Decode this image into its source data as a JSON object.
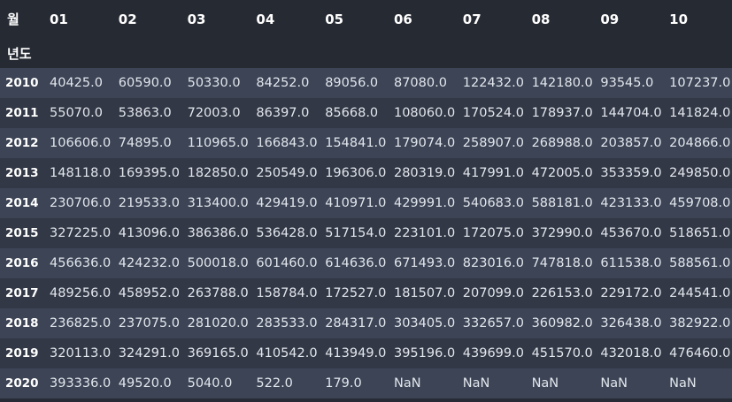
{
  "table": {
    "columns_name": "월",
    "index_name": "년도",
    "columns": [
      "01",
      "02",
      "03",
      "04",
      "05",
      "06",
      "07",
      "08",
      "09",
      "10"
    ],
    "rows": [
      {
        "index": "2010",
        "values": [
          "40425.0",
          "60590.0",
          "50330.0",
          "84252.0",
          "89056.0",
          "87080.0",
          "122432.0",
          "142180.0",
          "93545.0",
          "107237.0"
        ]
      },
      {
        "index": "2011",
        "values": [
          "55070.0",
          "53863.0",
          "72003.0",
          "86397.0",
          "85668.0",
          "108060.0",
          "170524.0",
          "178937.0",
          "144704.0",
          "141824.0"
        ]
      },
      {
        "index": "2012",
        "values": [
          "106606.0",
          "74895.0",
          "110965.0",
          "166843.0",
          "154841.0",
          "179074.0",
          "258907.0",
          "268988.0",
          "203857.0",
          "204866.0"
        ]
      },
      {
        "index": "2013",
        "values": [
          "148118.0",
          "169395.0",
          "182850.0",
          "250549.0",
          "196306.0",
          "280319.0",
          "417991.0",
          "472005.0",
          "353359.0",
          "249850.0"
        ]
      },
      {
        "index": "2014",
        "values": [
          "230706.0",
          "219533.0",
          "313400.0",
          "429419.0",
          "410971.0",
          "429991.0",
          "540683.0",
          "588181.0",
          "423133.0",
          "459708.0"
        ]
      },
      {
        "index": "2015",
        "values": [
          "327225.0",
          "413096.0",
          "386386.0",
          "536428.0",
          "517154.0",
          "223101.0",
          "172075.0",
          "372990.0",
          "453670.0",
          "518651.0"
        ]
      },
      {
        "index": "2016",
        "values": [
          "456636.0",
          "424232.0",
          "500018.0",
          "601460.0",
          "614636.0",
          "671493.0",
          "823016.0",
          "747818.0",
          "611538.0",
          "588561.0"
        ]
      },
      {
        "index": "2017",
        "values": [
          "489256.0",
          "458952.0",
          "263788.0",
          "158784.0",
          "172527.0",
          "181507.0",
          "207099.0",
          "226153.0",
          "229172.0",
          "244541.0"
        ]
      },
      {
        "index": "2018",
        "values": [
          "236825.0",
          "237075.0",
          "281020.0",
          "283533.0",
          "284317.0",
          "303405.0",
          "332657.0",
          "360982.0",
          "326438.0",
          "382922.0"
        ]
      },
      {
        "index": "2019",
        "values": [
          "320113.0",
          "324291.0",
          "369165.0",
          "410542.0",
          "413949.0",
          "395196.0",
          "439699.0",
          "451570.0",
          "432018.0",
          "476460.0"
        ]
      },
      {
        "index": "2020",
        "values": [
          "393336.0",
          "49520.0",
          "5040.0",
          "522.0",
          "179.0",
          "NaN",
          "NaN",
          "NaN",
          "NaN",
          "NaN"
        ]
      }
    ]
  }
}
